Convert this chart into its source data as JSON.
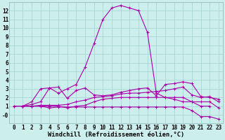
{
  "background_color": "#cceeed",
  "grid_color": "#aad4d4",
  "line_color": "#aa00aa",
  "xlabel": "Windchill (Refroidissement éolien,°C)",
  "xlim": [
    -0.5,
    23.5
  ],
  "ylim": [
    -1,
    13
  ],
  "xticks": [
    0,
    1,
    2,
    3,
    4,
    5,
    6,
    7,
    8,
    9,
    10,
    11,
    12,
    13,
    14,
    15,
    16,
    17,
    18,
    19,
    20,
    21,
    22,
    23
  ],
  "yticks": [
    0,
    1,
    2,
    3,
    4,
    5,
    6,
    7,
    8,
    9,
    10,
    11,
    12
  ],
  "ytick_labels": [
    "-0",
    "1",
    "2",
    "3",
    "4",
    "5",
    "6",
    "7",
    "8",
    "9",
    "10",
    "11",
    "12"
  ],
  "series": [
    [
      1,
      1.2,
      1.5,
      3.1,
      3.2,
      1.9,
      2.8,
      3.1,
      2.3,
      2.2,
      2.3,
      2.6,
      2.8,
      3.0,
      3.1,
      2.2,
      3.5,
      3.6,
      3.8,
      3.6,
      2.1,
      2.0,
      1.8
    ],
    [
      1,
      1,
      1,
      1.1,
      1.1,
      1.1,
      1.2,
      1.5,
      1.7,
      2.0,
      2.1,
      2.2,
      2.4,
      2.5,
      2.5,
      2.6,
      2.7,
      2.8,
      3.0,
      3.2,
      2.3,
      2.0,
      2.1,
      1.5
    ],
    [
      1,
      1,
      1,
      1,
      1,
      0.8,
      1,
      1.1,
      1.5,
      1.8,
      1.9,
      2.0,
      2.0,
      2.0,
      2.0,
      2.0,
      2.0,
      2.0,
      2.0,
      1.5,
      1.5,
      1.5,
      0.8
    ],
    [
      1,
      1,
      1,
      0.8,
      0.9,
      0.9,
      0.9,
      0.9,
      0.9,
      0.9,
      0.9,
      0.9,
      0.9,
      0.9,
      0.9,
      0.9,
      0.9,
      0.9,
      0.9,
      0.5,
      -0.2,
      -0.2,
      -0.5
    ],
    [
      1,
      1,
      1.5,
      3.0,
      3.1,
      2.5,
      3.0,
      3.5,
      5.5,
      8.2,
      11.0,
      12.3,
      12.6,
      12.3,
      12.0,
      9.5,
      2.5,
      2.0,
      1.8,
      1.5,
      1.5,
      1.0,
      1.0
    ]
  ],
  "tick_fontsize": 5.5,
  "xlabel_fontsize": 6.2
}
